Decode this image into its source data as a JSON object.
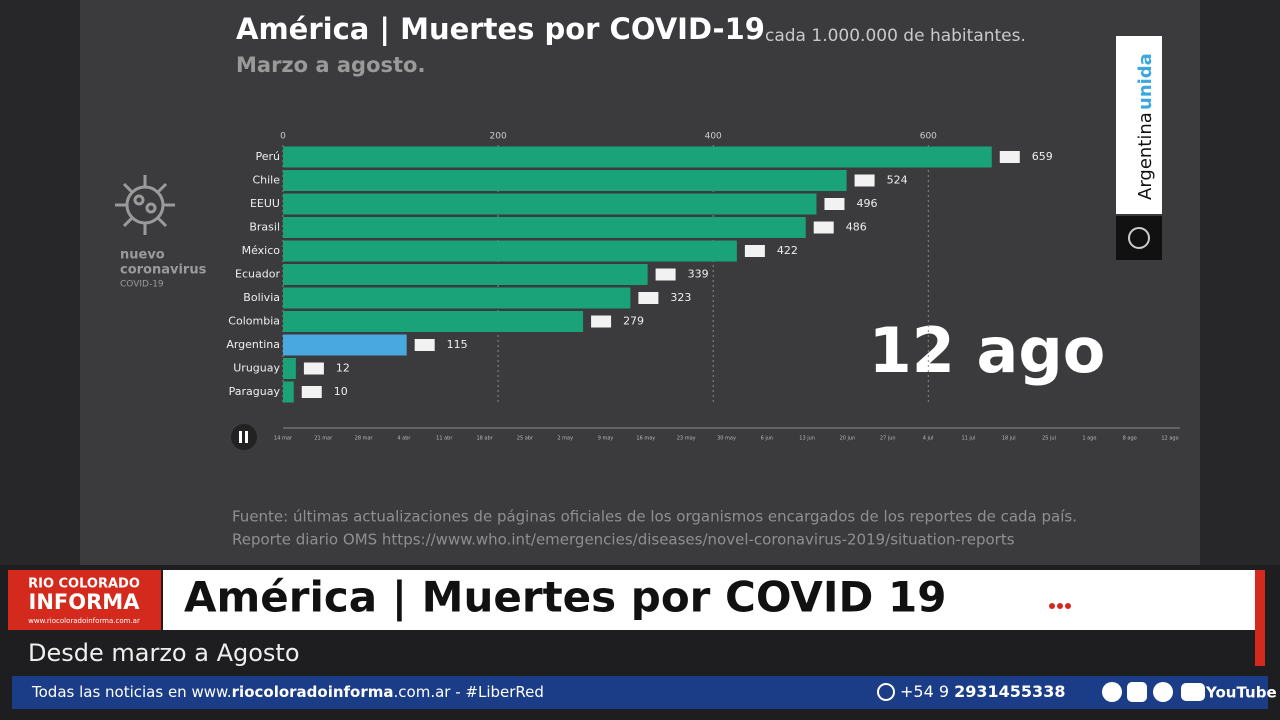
{
  "chart_data": {
    "type": "hbar",
    "title": "América | Muertes por COVID-19",
    "title_note": "cada 1.000.000 de habitantes.",
    "subtitle": "Marzo a agosto.",
    "categories": [
      "Perú",
      "Chile",
      "EEUU",
      "Brasil",
      "México",
      "Ecuador",
      "Bolivia",
      "Colombia",
      "Argentina",
      "Uruguay",
      "Paraguay"
    ],
    "values": [
      659,
      524,
      496,
      486,
      422,
      339,
      323,
      279,
      115,
      12,
      10
    ],
    "colors": [
      "#1aa278",
      "#1aa278",
      "#1aa278",
      "#1aa278",
      "#1aa278",
      "#1aa278",
      "#1aa278",
      "#1aa278",
      "#4aa8e0",
      "#1aa278",
      "#1aa278"
    ],
    "xlim": [
      0,
      834
    ],
    "xticks": [
      0,
      200,
      400,
      600
    ],
    "grid": true,
    "date": "12 ago",
    "timeline": [
      "14 mar",
      "21 mar",
      "28 mar",
      "4 abr",
      "11 abr",
      "18 abr",
      "25 abr",
      "2 may",
      "9 may",
      "16 may",
      "23 may",
      "30 may",
      "6 jun",
      "13 jun",
      "20 jun",
      "27 jun",
      "4 jul",
      "11 jul",
      "18 jul",
      "25 jul",
      "1 ago",
      "8 ago",
      "12 ago"
    ],
    "source": [
      "Fuente: últimas actualizaciones de páginas oficiales de los organismos encargados de los reportes de cada país.",
      "Reporte diario OMS https://www.who.int/emergencies/diseases/novel-coronavirus-2019/situation-reports"
    ]
  },
  "side_logo": {
    "lines": [
      "nuevo",
      "coronavirus"
    ],
    "tag": "COVID-19"
  },
  "badge": {
    "word1": "Argentina",
    "word2": "unida"
  },
  "lower_third": {
    "logo": {
      "line1": "RIO COLORADO",
      "line2": "INFORMA",
      "url": "www.riocoloradoinforma.com.ar"
    },
    "headline": "América | Muertes por COVID 19",
    "subheadline": "Desde marzo a Agosto",
    "ticker": {
      "prefix": "Todas las noticias en www.",
      "site": "riocoloradoinforma",
      "suffix": ".com.ar - #LiberRed",
      "phone_prefix": "+54 9",
      "phone": "2931455338",
      "youtube": "YouTube"
    }
  }
}
